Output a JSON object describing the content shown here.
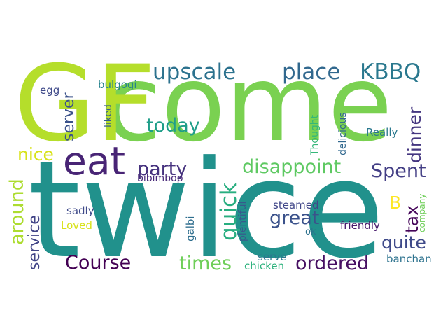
{
  "words": [
    {
      "id": "twice",
      "text": "twice",
      "color": "#21918c"
    },
    {
      "id": "come",
      "text": "come",
      "color": "#7ad151"
    },
    {
      "id": "gf",
      "text": "GF",
      "color": "#b5de2b"
    },
    {
      "id": "eat",
      "text": "eat",
      "color": "#482475"
    },
    {
      "id": "upscale",
      "text": "upscale",
      "color": "#2c728e"
    },
    {
      "id": "place",
      "text": "place",
      "color": "#31688e"
    },
    {
      "id": "kbbq",
      "text": "KBBQ",
      "color": "#2a788e"
    },
    {
      "id": "party",
      "text": "party",
      "color": "#46327e"
    },
    {
      "id": "disappoint",
      "text": "disappoint",
      "color": "#5ec962"
    },
    {
      "id": "spent",
      "text": "Spent",
      "color": "#433e85"
    },
    {
      "id": "today",
      "text": "today",
      "color": "#1f9e89"
    },
    {
      "id": "quick",
      "text": "quick",
      "color": "#28ae80"
    },
    {
      "id": "great",
      "text": "great",
      "color": "#3b528b"
    },
    {
      "id": "course",
      "text": "Course",
      "color": "#440154"
    },
    {
      "id": "times",
      "text": "times",
      "color": "#6ece58"
    },
    {
      "id": "ordered",
      "text": "ordered",
      "color": "#471063"
    },
    {
      "id": "quite",
      "text": "quite",
      "color": "#3e4989"
    },
    {
      "id": "around",
      "text": "around",
      "color": "#addc30"
    },
    {
      "id": "service",
      "text": "service",
      "color": "#414487"
    },
    {
      "id": "server",
      "text": "server",
      "color": "#3b528b"
    },
    {
      "id": "dinner",
      "text": "dinner",
      "color": "#453781"
    },
    {
      "id": "tax",
      "text": "tax",
      "color": "#450559"
    },
    {
      "id": "b",
      "text": "B",
      "color": "#fde725"
    },
    {
      "id": "nice",
      "text": "nice",
      "color": "#d8e219"
    },
    {
      "id": "egg",
      "text": "egg",
      "color": "#3e4989"
    },
    {
      "id": "bulgogi",
      "text": "bulgogi",
      "color": "#26828e"
    },
    {
      "id": "liked",
      "text": "liked",
      "color": "#355f8d"
    },
    {
      "id": "thought",
      "text": "Thought",
      "color": "#35b779"
    },
    {
      "id": "delicious",
      "text": "delicious",
      "color": "#31688e"
    },
    {
      "id": "really",
      "text": "Really",
      "color": "#2a788e"
    },
    {
      "id": "bibimbop",
      "text": "bibimbop",
      "color": "#482878"
    },
    {
      "id": "sadly",
      "text": "sadly",
      "color": "#3e4989"
    },
    {
      "id": "loved",
      "text": "Loved",
      "color": "#d8e219"
    },
    {
      "id": "galbi",
      "text": "galbi",
      "color": "#2e6e8e"
    },
    {
      "id": "plentiful",
      "text": "plentiful",
      "color": "#375a8c"
    },
    {
      "id": "steamed",
      "text": "steamed",
      "color": "#404688"
    },
    {
      "id": "company",
      "text": "company",
      "color": "#6ece58"
    },
    {
      "id": "ok",
      "text": "ok",
      "color": "#2c728e"
    },
    {
      "id": "friendly",
      "text": "friendly",
      "color": "#481a6c"
    },
    {
      "id": "serve",
      "text": "serve",
      "color": "#2a788e"
    },
    {
      "id": "chicken",
      "text": "chicken",
      "color": "#2db27d"
    },
    {
      "id": "banchan",
      "text": "banchan",
      "color": "#2c728e"
    }
  ]
}
